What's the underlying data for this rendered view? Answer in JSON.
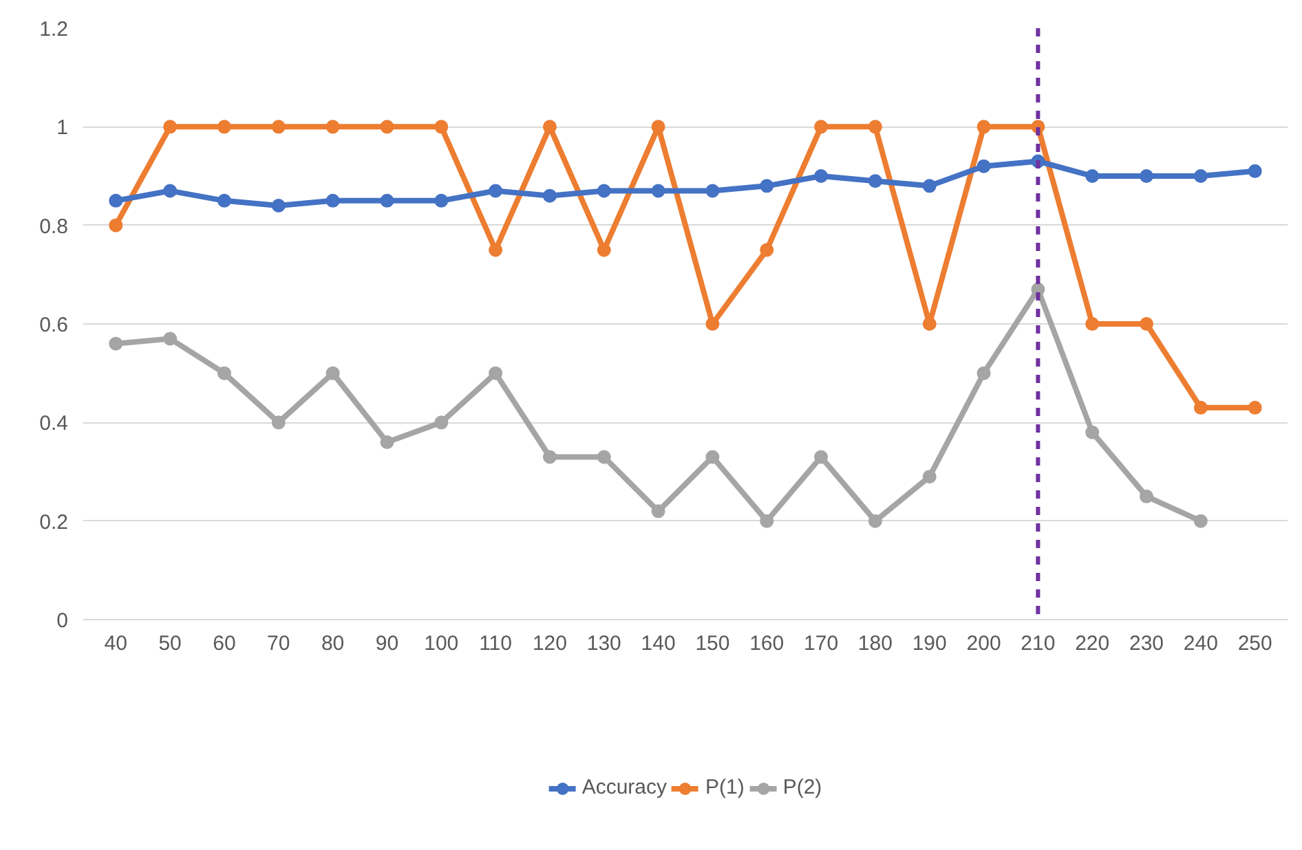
{
  "chart_data": {
    "type": "line",
    "categories": [
      "40",
      "50",
      "60",
      "70",
      "80",
      "90",
      "100",
      "110",
      "120",
      "130",
      "140",
      "150",
      "160",
      "170",
      "180",
      "190",
      "200",
      "210",
      "220",
      "230",
      "240",
      "250"
    ],
    "series": [
      {
        "name": "Accuracy",
        "color": "#4472c4",
        "values": [
          0.85,
          0.87,
          0.85,
          0.84,
          0.85,
          0.85,
          0.85,
          0.87,
          0.86,
          0.87,
          0.87,
          0.87,
          0.88,
          0.9,
          0.89,
          0.88,
          0.92,
          0.93,
          0.9,
          0.9,
          0.9,
          0.91
        ]
      },
      {
        "name": "P(1)",
        "color": "#ed7d31",
        "values": [
          0.8,
          1,
          1,
          1,
          1,
          1,
          1,
          0.75,
          1,
          0.75,
          1,
          0.6,
          0.75,
          1,
          1,
          0.6,
          1,
          1,
          0.6,
          0.6,
          0.43,
          0.43
        ]
      },
      {
        "name": "P(2)",
        "color": "#a5a5a5",
        "values": [
          0.56,
          0.57,
          0.5,
          0.4,
          0.5,
          0.36,
          0.4,
          0.5,
          0.33,
          0.33,
          0.22,
          0.33,
          0.2,
          0.33,
          0.2,
          0.29,
          0.5,
          0.67,
          0.38,
          0.25,
          0.2,
          null
        ]
      }
    ],
    "ylim": [
      0,
      1.2
    ],
    "yticks": [
      0,
      0.2,
      0.4,
      0.6,
      0.8,
      1,
      1.2
    ],
    "ref_lines": [
      {
        "axis": "x",
        "value": "210",
        "color": "#7030a0",
        "line_style": "dashed"
      }
    ],
    "grid": "y",
    "legend": "bottom",
    "marker": "circle",
    "line_style": "solid"
  }
}
